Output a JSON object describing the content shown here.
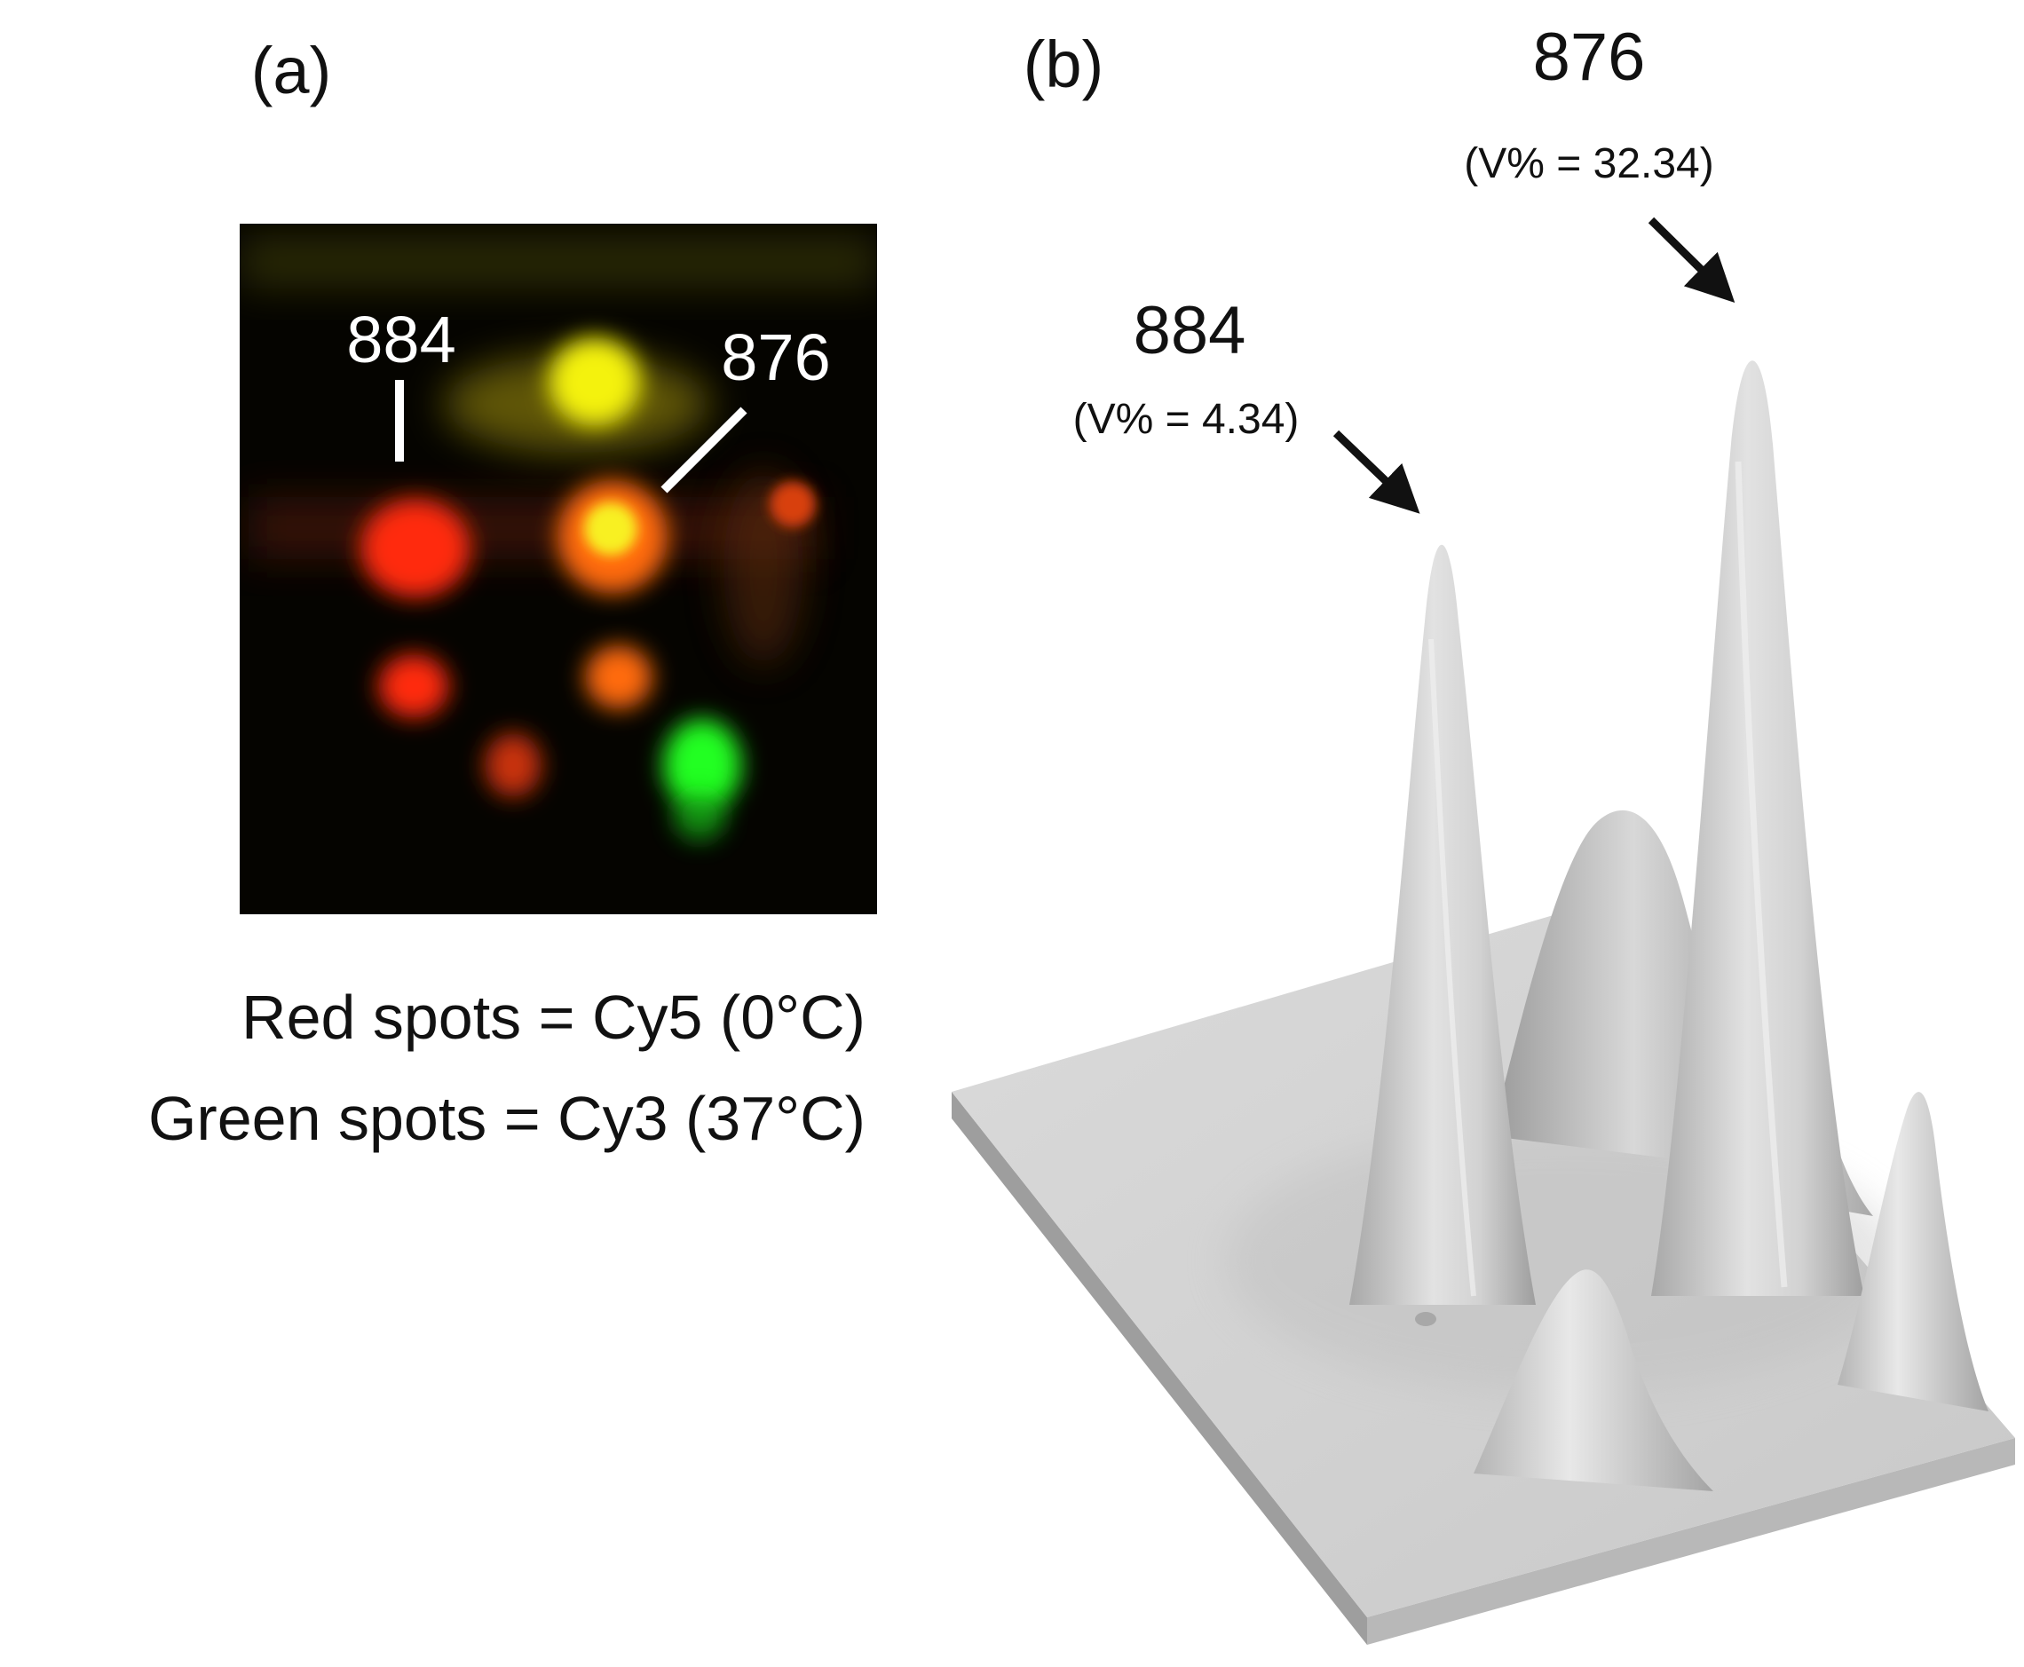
{
  "panel_a": {
    "label": "(a)",
    "spot_labels": {
      "s884": "884",
      "s876": "876"
    },
    "legend": {
      "red": "Red spots = Cy5 (0°C)",
      "green": "Green spots = Cy3 (37°C)"
    },
    "colors": {
      "red": "#ff2a10",
      "orange": "#ff6a10",
      "yellow": "#f4f20a",
      "green": "#22ff22",
      "background": "#050400"
    }
  },
  "panel_b": {
    "label": "(b)",
    "peaks": {
      "p884": {
        "name": "884",
        "volume": "(V% = 4.34)"
      },
      "p876": {
        "name": "876",
        "volume": "(V% = 32.34)"
      }
    },
    "colors": {
      "surface": "#d6d6d6",
      "shadow": "#a9a9a9"
    }
  }
}
